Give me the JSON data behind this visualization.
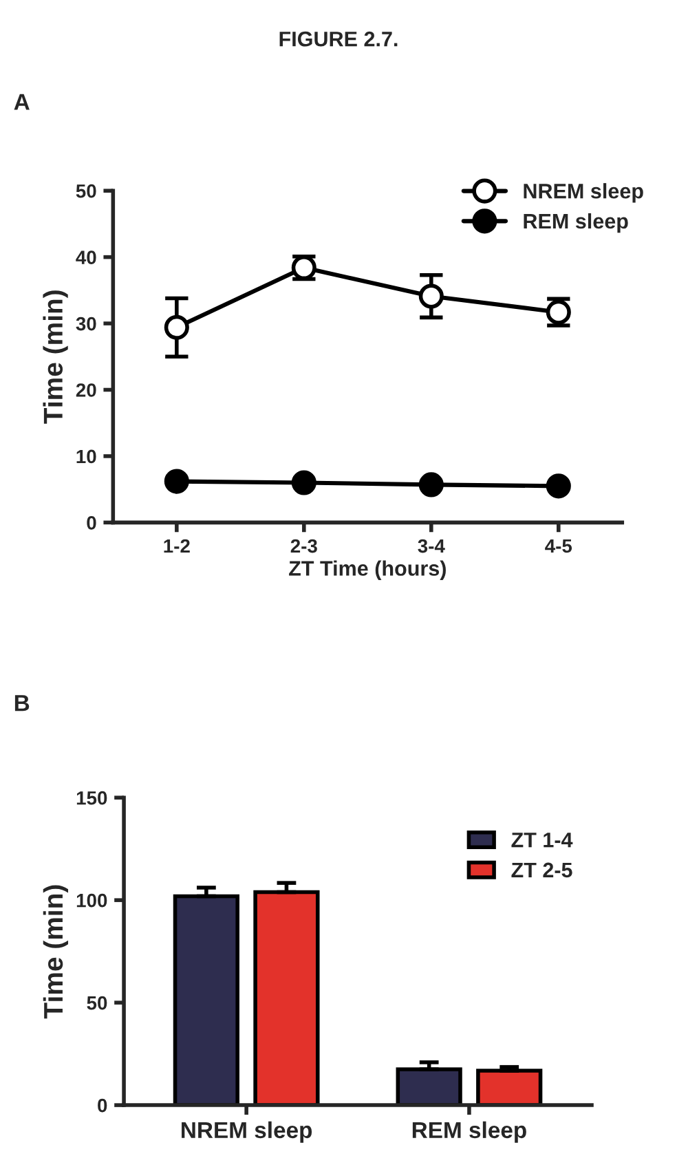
{
  "chart_data": [
    {
      "type": "line",
      "title": "FIGURE 2.7.",
      "annotations": [
        "A"
      ],
      "xlabel": "ZT Time (hours)",
      "ylabel": "Time (min)",
      "categories": [
        "1-2",
        "2-3",
        "3-4",
        "4-5"
      ],
      "series": [
        {
          "name": "NREM sleep",
          "color": "#000000",
          "marker": "open_circle",
          "values": [
            29.4,
            38.4,
            34.1,
            31.7
          ],
          "errors": [
            4.4,
            1.7,
            3.2,
            2.0
          ]
        },
        {
          "name": "REM sleep",
          "color": "#000000",
          "marker": "circle",
          "values": [
            6.2,
            6.0,
            5.7,
            5.5
          ]
        }
      ],
      "ylim": [
        0,
        50
      ],
      "yticks": [
        0,
        10,
        20,
        30,
        40,
        50
      ],
      "legend": "top right",
      "grid": false,
      "line_style": "solid"
    },
    {
      "type": "bar",
      "annotations": [
        "B"
      ],
      "ylabel": "Time (min)",
      "categories": [
        "NREM sleep",
        "REM sleep"
      ],
      "series": [
        {
          "name": "ZT 1-4",
          "color": "#2e2d4f",
          "values": [
            101.9,
            17.5
          ],
          "errors": [
            [
              101.9,
              106.1
            ],
            [
              17.5,
              20.9
            ]
          ]
        },
        {
          "name": "ZT 2-5",
          "color": "#e3322b",
          "values": [
            103.9,
            16.8
          ],
          "errors": [
            [
              103.9,
              108.4
            ],
            [
              16.8,
              18.6
            ]
          ]
        }
      ],
      "ylim": [
        0,
        150
      ],
      "yticks": [
        0,
        50,
        100,
        150
      ],
      "legend": "top right",
      "grid": false
    }
  ]
}
